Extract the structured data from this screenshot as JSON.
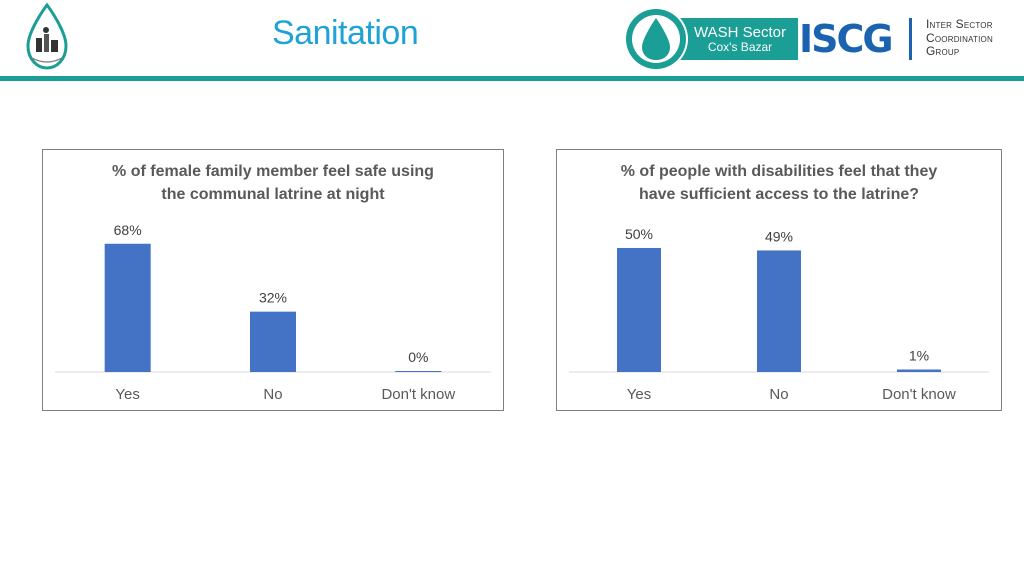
{
  "header": {
    "title": "Sanitation",
    "wash_logo": {
      "line1": "WASH Sector",
      "line2": "Cox's Bazar"
    },
    "iscg": {
      "acronym": "ISCG",
      "lines": [
        "Inter Sector",
        "Coordination",
        "Group"
      ]
    },
    "colors": {
      "accent": "#1a9e95",
      "title": "#1fa3d6",
      "iscg": "#1b63b0",
      "bar": "#4472c4"
    }
  },
  "chart_data": [
    {
      "type": "bar",
      "title_lines": [
        "% of female family member feel safe using",
        "the communal latrine at night"
      ],
      "categories": [
        "Yes",
        "No",
        "Don't know"
      ],
      "values": [
        68,
        32,
        0
      ],
      "value_labels": [
        "68%",
        "32%",
        "0%"
      ],
      "ylim": [
        0,
        70
      ],
      "grid": false,
      "legend": "none"
    },
    {
      "type": "bar",
      "title_lines": [
        "% of people with disabilities feel that they",
        "have sufficient access to the latrine?"
      ],
      "categories": [
        "Yes",
        "No",
        "Don't know"
      ],
      "values": [
        50,
        49,
        1
      ],
      "value_labels": [
        "50%",
        "49%",
        "1%"
      ],
      "ylim": [
        0,
        52
      ],
      "grid": false,
      "legend": "none"
    }
  ]
}
